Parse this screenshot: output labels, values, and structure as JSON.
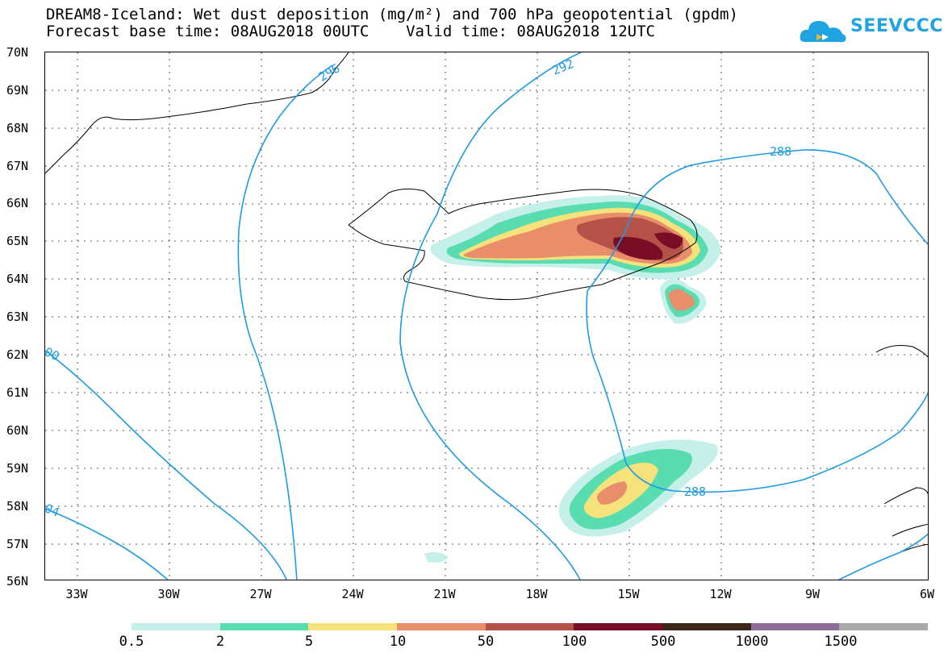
{
  "header": {
    "title_line1": "DREAM8-Iceland: Wet dust deposition (mg/m²) and 700 hPa geopotential (gpdm)",
    "title_line2": "Forecast base time: 08AUG2018 00UTC    Valid time: 08AUG2018 12UTC"
  },
  "logo": {
    "text": "SEEVCCC",
    "icon": "cloud-icon",
    "color": "#1fa3e3"
  },
  "map": {
    "lat_labels": [
      "70N",
      "69N",
      "68N",
      "67N",
      "66N",
      "65N",
      "64N",
      "63N",
      "62N",
      "61N",
      "60N",
      "59N",
      "58N",
      "57N",
      "56N"
    ],
    "lon_labels": [
      "33W",
      "30W",
      "27W",
      "24W",
      "21W",
      "18W",
      "15W",
      "12W",
      "9W",
      "6W"
    ],
    "contour_labels": [
      "296",
      "292",
      "288",
      "288",
      "00",
      "04"
    ],
    "contour_color": "#1e9be0",
    "gridlines": "dotted"
  },
  "legend": {
    "colors": [
      "#c5f0ea",
      "#58dcb0",
      "#f6e27a",
      "#e88e6a",
      "#b4524a",
      "#7a0d26",
      "#3c2617",
      "#8e6c98",
      "#a9a9a9"
    ],
    "labels": [
      "0.5",
      "2",
      "5",
      "10",
      "50",
      "100",
      "500",
      "1000",
      "1500"
    ]
  }
}
